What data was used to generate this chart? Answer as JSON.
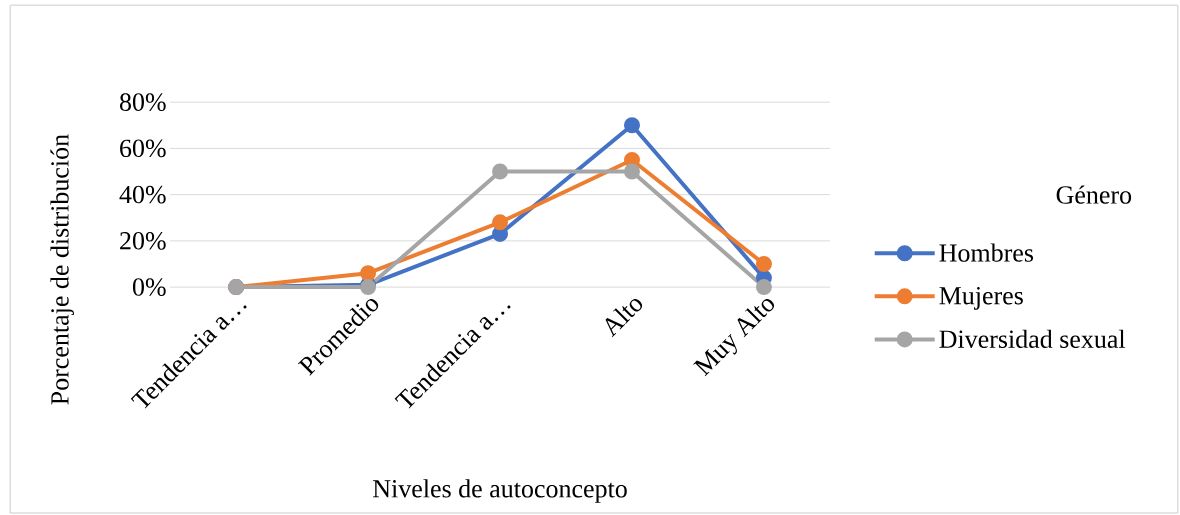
{
  "chart_data": {
    "type": "line",
    "xlabel": "Niveles de autoconcepto",
    "ylabel": "Porcentaje de distribución",
    "legend_title": "Género",
    "categories": [
      "Tendencia a…",
      "Promedio",
      "Tendencia a…",
      "Alto",
      "Muy Alto"
    ],
    "series": [
      {
        "name": "Hombres",
        "color": "#4472c4",
        "values": [
          0,
          1,
          23,
          70,
          4
        ]
      },
      {
        "name": "Mujeres",
        "color": "#ed7d31",
        "values": [
          0,
          6,
          28,
          55,
          10
        ]
      },
      {
        "name": "Diversidad sexual",
        "color": "#a5a5a5",
        "values": [
          0,
          0,
          50,
          50,
          0
        ]
      }
    ],
    "ylim": [
      0,
      80
    ],
    "yticks": [
      {
        "value": 0,
        "label": "0%"
      },
      {
        "value": 20,
        "label": "20%"
      },
      {
        "value": 40,
        "label": "40%"
      },
      {
        "value": 60,
        "label": "60%"
      },
      {
        "value": 80,
        "label": "80%"
      }
    ],
    "grid": "y",
    "legend": "right",
    "marker": "circle",
    "line_style": "solid"
  }
}
